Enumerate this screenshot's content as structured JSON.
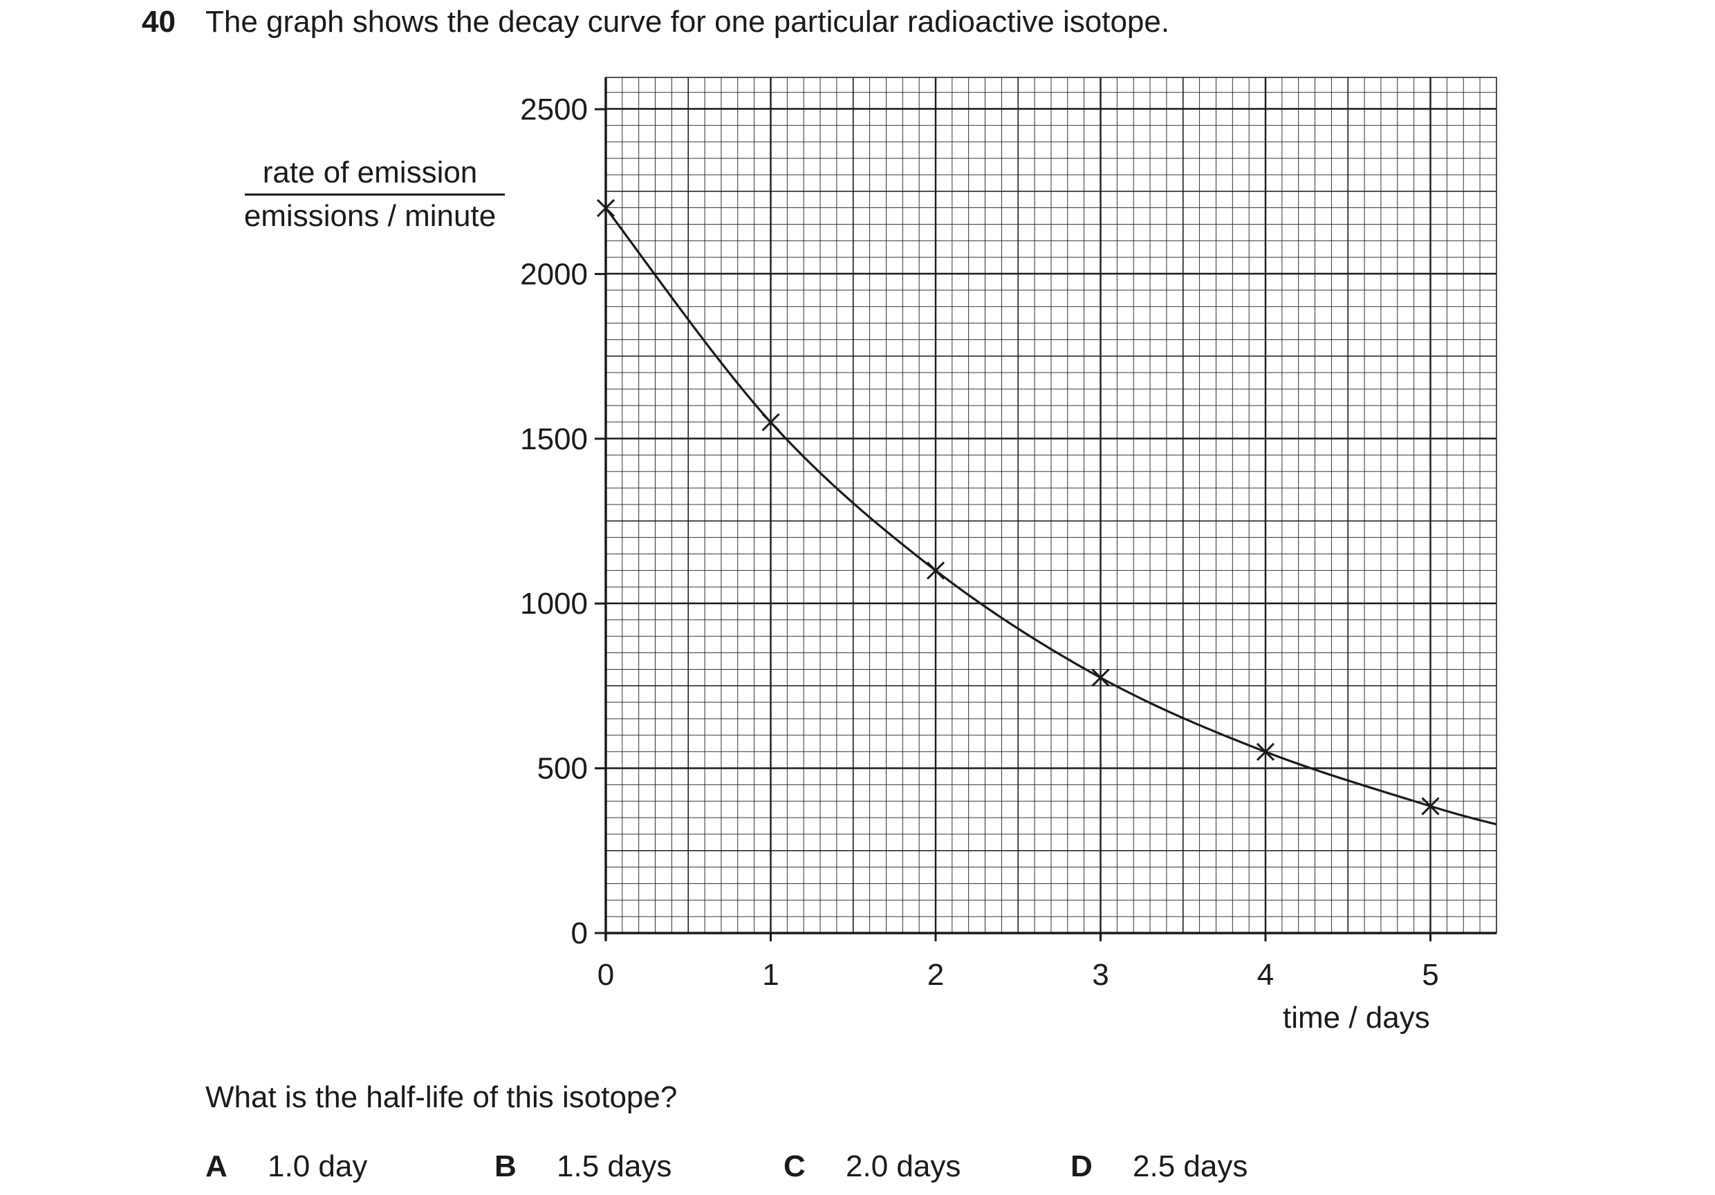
{
  "question": {
    "number": "40",
    "text": "The graph shows the decay curve for one particular radioactive isotope.",
    "prompt": "What is the half-life of this isotope?",
    "options": [
      {
        "letter": "A",
        "value": "1.0 day"
      },
      {
        "letter": "B",
        "value": "1.5 days"
      },
      {
        "letter": "C",
        "value": "2.0 days"
      },
      {
        "letter": "D",
        "value": "2.5 days"
      }
    ]
  },
  "chart_data": {
    "type": "line",
    "title": "",
    "ylabel_numerator": "rate of emission",
    "ylabel_denominator": "emissions / minute",
    "xlabel": "time / days",
    "xlim": [
      0,
      5.4
    ],
    "ylim": [
      0,
      2600
    ],
    "x_ticks": [
      0,
      1,
      2,
      3,
      4,
      5
    ],
    "y_ticks": [
      0,
      500,
      1000,
      1500,
      2000,
      2500
    ],
    "grid": true,
    "points": [
      {
        "x": 0,
        "y": 2200
      },
      {
        "x": 1,
        "y": 1550
      },
      {
        "x": 2,
        "y": 1100
      },
      {
        "x": 3,
        "y": 775
      },
      {
        "x": 4,
        "y": 550
      },
      {
        "x": 5,
        "y": 385
      }
    ],
    "curve_end": {
      "x": 5.4,
      "y": 330
    }
  }
}
